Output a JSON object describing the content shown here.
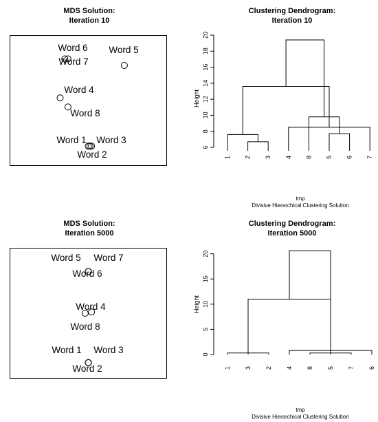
{
  "chart_data": [
    {
      "type": "scatter",
      "title": "MDS Solution:",
      "subtitle": "Iteration 10",
      "points": [
        {
          "label": "Word 6",
          "x": 0.35,
          "y": 0.82
        },
        {
          "label": "Word 7",
          "x": 0.37,
          "y": 0.82
        },
        {
          "label": "Word 5",
          "x": 0.73,
          "y": 0.77
        },
        {
          "label": "Word 4",
          "x": 0.32,
          "y": 0.52
        },
        {
          "label": "Word 8",
          "x": 0.37,
          "y": 0.45
        },
        {
          "label": "Word 1",
          "x": 0.5,
          "y": 0.15
        },
        {
          "label": "Word 3",
          "x": 0.52,
          "y": 0.15
        },
        {
          "label": "Word 2",
          "x": 0.51,
          "y": 0.15
        }
      ],
      "xlim": [
        0,
        1
      ],
      "ylim": [
        0,
        1
      ]
    },
    {
      "type": "dendrogram",
      "title": "Clustering Dendrogram:",
      "subtitle": "Iteration 10",
      "ylabel": "Height",
      "xlabel": "tmp",
      "note": "Divisive Hierarchical Clustering Solution",
      "ylim": [
        6,
        20
      ],
      "yticks": [
        6,
        8,
        10,
        12,
        14,
        16,
        18,
        20
      ],
      "leaves": [
        "1",
        "2",
        "3",
        "4",
        "8",
        "5",
        "6",
        "7"
      ],
      "merges": [
        [
          -2,
          -3,
          6.7
        ],
        [
          -1,
          1,
          7.6
        ],
        [
          -4,
          -8,
          8.5
        ],
        [
          2,
          3,
          13.6
        ],
        [
          -6,
          -7,
          7.7
        ],
        [
          -5,
          5,
          9.8
        ],
        [
          4,
          6,
          19.4
        ]
      ]
    },
    {
      "type": "scatter",
      "title": "MDS Solution:",
      "subtitle": "Iteration 5000",
      "points": [
        {
          "label": "Word 5",
          "x": 0.5,
          "y": 0.82
        },
        {
          "label": "Word 7",
          "x": 0.5,
          "y": 0.82
        },
        {
          "label": "Word 6",
          "x": 0.5,
          "y": 0.82
        },
        {
          "label": "Word 4",
          "x": 0.52,
          "y": 0.51
        },
        {
          "label": "Word 8",
          "x": 0.48,
          "y": 0.5
        },
        {
          "label": "Word 1",
          "x": 0.5,
          "y": 0.12
        },
        {
          "label": "Word 3",
          "x": 0.5,
          "y": 0.12
        },
        {
          "label": "Word 2",
          "x": 0.5,
          "y": 0.12
        }
      ],
      "xlim": [
        0,
        1
      ],
      "ylim": [
        0,
        1
      ]
    },
    {
      "type": "dendrogram",
      "title": "Clustering Dendrogram:",
      "subtitle": "Iteration 5000",
      "ylabel": "Height",
      "xlabel": "tmp",
      "note": "Divisive Hierarchical Clustering Solution",
      "ylim": [
        0,
        20.5
      ],
      "yticks": [
        0,
        5,
        10,
        15,
        20
      ],
      "leaves": [
        "1",
        "3",
        "2",
        "4",
        "8",
        "5",
        "7",
        "6"
      ],
      "merges": [
        [
          -1,
          -3,
          0.3
        ],
        [
          1,
          -2,
          0.4
        ],
        [
          -4,
          -8,
          0.8
        ],
        [
          2,
          3,
          11.0
        ],
        [
          -5,
          -7,
          0.3
        ],
        [
          5,
          -6,
          0.4
        ],
        [
          4,
          6,
          20.6
        ]
      ]
    }
  ]
}
